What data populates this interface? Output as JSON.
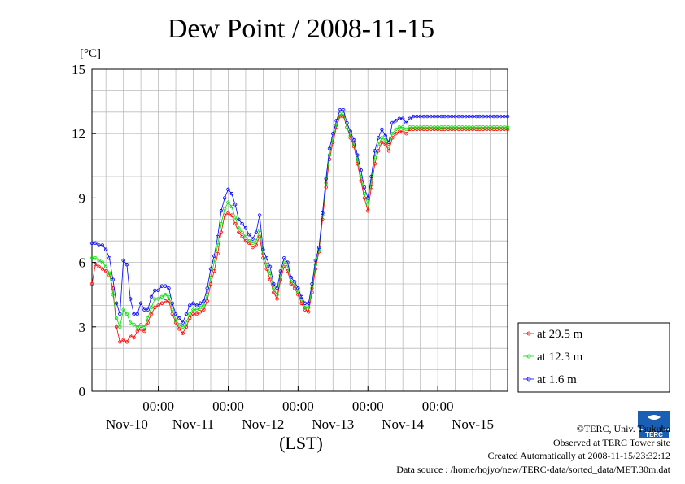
{
  "chart_data": {
    "type": "line",
    "title": "Dew Point / 2008-11-15",
    "ylabel": "[°C]",
    "xlabel": "(LST)",
    "ylim": [
      0,
      15
    ],
    "yticks": [
      0,
      3,
      6,
      9,
      12,
      15
    ],
    "ytick_labels": [
      "0",
      "3",
      "6",
      "9",
      "12",
      "15"
    ],
    "xlim": [
      -0.95,
      5.0
    ],
    "xticks_time": [
      0,
      1,
      2,
      3,
      4
    ],
    "xtick_time_label": "00:00",
    "x_day_labels": [
      {
        "x": -0.45,
        "label": "Nov-10"
      },
      {
        "x": 0.5,
        "label": "Nov-11"
      },
      {
        "x": 1.5,
        "label": "Nov-12"
      },
      {
        "x": 2.5,
        "label": "Nov-13"
      },
      {
        "x": 3.5,
        "label": "Nov-14"
      },
      {
        "x": 4.5,
        "label": "Nov-15"
      }
    ],
    "grid": true,
    "legend_position": "right",
    "x_unit": "days relative to Nov-11 00:00 (LST)",
    "series": [
      {
        "name": "at 29.5 m",
        "color": "#ff0000",
        "x": [
          -0.95,
          -0.9,
          -0.85,
          -0.8,
          -0.75,
          -0.7,
          -0.65,
          -0.6,
          -0.55,
          -0.5,
          -0.45,
          -0.4,
          -0.35,
          -0.3,
          -0.25,
          -0.2,
          -0.15,
          -0.1,
          -0.05,
          0,
          0.05,
          0.1,
          0.15,
          0.2,
          0.25,
          0.3,
          0.35,
          0.4,
          0.45,
          0.5,
          0.55,
          0.6,
          0.65,
          0.7,
          0.75,
          0.8,
          0.85,
          0.9,
          0.95,
          1,
          1.05,
          1.1,
          1.15,
          1.2,
          1.25,
          1.3,
          1.35,
          1.4,
          1.45,
          1.5,
          1.55,
          1.6,
          1.65,
          1.7,
          1.75,
          1.8,
          1.85,
          1.9,
          1.95,
          2,
          2.05,
          2.1,
          2.15,
          2.2,
          2.25,
          2.3,
          2.35,
          2.4,
          2.45,
          2.5,
          2.55,
          2.6,
          2.65,
          2.7,
          2.75,
          2.8,
          2.85,
          2.9,
          2.95,
          3,
          3.05,
          3.1,
          3.15,
          3.2,
          3.25,
          3.3,
          3.35,
          3.4,
          3.45,
          3.5,
          3.55,
          3.6,
          3.65,
          3.7,
          3.75,
          3.8,
          3.85,
          3.9,
          3.95,
          4,
          4.05,
          4.1,
          4.15,
          4.2,
          4.25,
          4.3,
          4.35,
          4.4,
          4.45,
          4.5,
          4.55,
          4.6,
          4.65,
          4.7,
          4.75,
          4.8,
          4.85,
          4.9,
          4.95,
          5.0
        ],
        "y": [
          5.0,
          5.9,
          5.8,
          5.7,
          5.6,
          5.4,
          4.8,
          3.0,
          2.3,
          2.4,
          2.3,
          2.6,
          2.5,
          2.8,
          2.9,
          2.8,
          3.2,
          3.6,
          3.9,
          4.0,
          4.1,
          4.2,
          4.2,
          3.6,
          3.2,
          2.9,
          2.7,
          3.0,
          3.4,
          3.6,
          3.6,
          3.7,
          3.8,
          4.2,
          5.0,
          5.6,
          6.4,
          7.4,
          8.2,
          8.3,
          8.2,
          7.8,
          7.4,
          7.2,
          7.0,
          6.9,
          6.7,
          6.8,
          7.2,
          6.2,
          5.7,
          5.2,
          4.6,
          4.3,
          5.2,
          5.8,
          5.6,
          5.0,
          4.8,
          4.5,
          4.1,
          3.8,
          3.7,
          4.6,
          5.7,
          6.5,
          8.0,
          9.5,
          10.8,
          11.6,
          12.3,
          12.8,
          12.8,
          12.3,
          11.8,
          11.4,
          10.6,
          9.8,
          9.0,
          8.4,
          9.5,
          10.6,
          11.2,
          11.6,
          11.5,
          11.2,
          11.8,
          12.0,
          12.1,
          12.1,
          12.0,
          12.2,
          12.2,
          12.2,
          12.2,
          12.2,
          12.2,
          12.2,
          12.2,
          12.2,
          12.2,
          12.2,
          12.2,
          12.2,
          12.2,
          12.2,
          12.2,
          12.2,
          12.2,
          12.2,
          12.2,
          12.2,
          12.2,
          12.2,
          12.2,
          12.2,
          12.2,
          12.2,
          12.2,
          12.2
        ]
      },
      {
        "name": "at 12.3 m",
        "color": "#00dd00",
        "x": [
          -0.95,
          -0.9,
          -0.85,
          -0.8,
          -0.75,
          -0.7,
          -0.65,
          -0.6,
          -0.55,
          -0.5,
          -0.45,
          -0.4,
          -0.35,
          -0.3,
          -0.25,
          -0.2,
          -0.15,
          -0.1,
          -0.05,
          0,
          0.05,
          0.1,
          0.15,
          0.2,
          0.25,
          0.3,
          0.35,
          0.4,
          0.45,
          0.5,
          0.55,
          0.6,
          0.65,
          0.7,
          0.75,
          0.8,
          0.85,
          0.9,
          0.95,
          1,
          1.05,
          1.1,
          1.15,
          1.2,
          1.25,
          1.3,
          1.35,
          1.4,
          1.45,
          1.5,
          1.55,
          1.6,
          1.65,
          1.7,
          1.75,
          1.8,
          1.85,
          1.9,
          1.95,
          2,
          2.05,
          2.1,
          2.15,
          2.2,
          2.25,
          2.3,
          2.35,
          2.4,
          2.45,
          2.5,
          2.55,
          2.6,
          2.65,
          2.7,
          2.75,
          2.8,
          2.85,
          2.9,
          2.95,
          3,
          3.05,
          3.1,
          3.15,
          3.2,
          3.25,
          3.3,
          3.35,
          3.4,
          3.45,
          3.5,
          3.55,
          3.6,
          3.65,
          3.7,
          3.75,
          3.8,
          3.85,
          3.9,
          3.95,
          4,
          4.05,
          4.1,
          4.15,
          4.2,
          4.25,
          4.3,
          4.35,
          4.4,
          4.45,
          4.5,
          4.55,
          4.6,
          4.65,
          4.7,
          4.75,
          4.8,
          4.85,
          4.9,
          4.95,
          5.0
        ],
        "y": [
          6.2,
          6.2,
          6.1,
          6.0,
          5.8,
          5.5,
          4.5,
          3.4,
          3.0,
          3.8,
          3.6,
          3.2,
          3.1,
          3.0,
          3.1,
          3.0,
          3.4,
          3.9,
          4.3,
          4.3,
          4.4,
          4.5,
          4.4,
          3.8,
          3.3,
          3.1,
          3.0,
          3.2,
          3.6,
          3.8,
          3.8,
          3.9,
          4.0,
          4.5,
          5.3,
          6.0,
          6.8,
          7.8,
          8.5,
          8.8,
          8.6,
          8.1,
          7.6,
          7.4,
          7.2,
          7.0,
          6.9,
          7.0,
          7.5,
          6.4,
          5.9,
          5.5,
          4.8,
          4.5,
          5.4,
          6.0,
          5.8,
          5.1,
          4.9,
          4.6,
          4.3,
          3.9,
          3.9,
          4.8,
          5.9,
          6.6,
          8.2,
          9.7,
          11.0,
          11.8,
          12.4,
          12.9,
          12.9,
          12.3,
          11.9,
          11.5,
          10.8,
          10.0,
          9.2,
          8.7,
          9.8,
          10.9,
          11.5,
          11.8,
          11.7,
          11.4,
          12.0,
          12.2,
          12.3,
          12.3,
          12.2,
          12.3,
          12.3,
          12.3,
          12.3,
          12.3,
          12.3,
          12.3,
          12.3,
          12.3,
          12.3,
          12.3,
          12.3,
          12.3,
          12.3,
          12.3,
          12.3,
          12.3,
          12.3,
          12.3,
          12.3,
          12.3,
          12.3,
          12.3,
          12.3,
          12.3,
          12.3,
          12.3,
          12.3,
          12.3
        ]
      },
      {
        "name": "at 1.6 m",
        "color": "#0000ff",
        "x": [
          -0.95,
          -0.9,
          -0.85,
          -0.8,
          -0.75,
          -0.7,
          -0.65,
          -0.6,
          -0.55,
          -0.5,
          -0.45,
          -0.4,
          -0.35,
          -0.3,
          -0.25,
          -0.2,
          -0.15,
          -0.1,
          -0.05,
          0,
          0.05,
          0.1,
          0.15,
          0.2,
          0.25,
          0.3,
          0.35,
          0.4,
          0.45,
          0.5,
          0.55,
          0.6,
          0.65,
          0.7,
          0.75,
          0.8,
          0.85,
          0.9,
          0.95,
          1,
          1.05,
          1.1,
          1.15,
          1.2,
          1.25,
          1.3,
          1.35,
          1.4,
          1.45,
          1.5,
          1.55,
          1.6,
          1.65,
          1.7,
          1.75,
          1.8,
          1.85,
          1.9,
          1.95,
          2,
          2.05,
          2.1,
          2.15,
          2.2,
          2.25,
          2.3,
          2.35,
          2.4,
          2.45,
          2.5,
          2.55,
          2.6,
          2.65,
          2.7,
          2.75,
          2.8,
          2.85,
          2.9,
          2.95,
          3,
          3.05,
          3.1,
          3.15,
          3.2,
          3.25,
          3.3,
          3.35,
          3.4,
          3.45,
          3.5,
          3.55,
          3.6,
          3.65,
          3.7,
          3.75,
          3.8,
          3.85,
          3.9,
          3.95,
          4,
          4.05,
          4.1,
          4.15,
          4.2,
          4.25,
          4.3,
          4.35,
          4.4,
          4.45,
          4.5,
          4.55,
          4.6,
          4.65,
          4.7,
          4.75,
          4.8,
          4.85,
          4.9,
          4.95,
          5.0
        ],
        "y": [
          6.9,
          6.9,
          6.8,
          6.8,
          6.6,
          6.2,
          5.2,
          4.1,
          3.6,
          6.1,
          5.9,
          4.3,
          3.6,
          3.6,
          4.1,
          3.8,
          3.8,
          4.4,
          4.7,
          4.7,
          4.9,
          4.9,
          4.8,
          4.1,
          3.6,
          3.4,
          3.2,
          3.6,
          4.0,
          4.1,
          4.0,
          4.1,
          4.2,
          4.8,
          5.7,
          6.3,
          7.2,
          8.4,
          9.0,
          9.4,
          9.2,
          8.7,
          8.0,
          7.8,
          7.6,
          7.3,
          7.1,
          7.4,
          8.2,
          6.6,
          6.2,
          5.8,
          5.0,
          4.8,
          5.6,
          6.2,
          6.0,
          5.3,
          5.1,
          4.8,
          4.4,
          4.1,
          4.1,
          5.0,
          6.1,
          6.7,
          8.3,
          9.9,
          11.3,
          12.0,
          12.6,
          13.1,
          13.1,
          12.5,
          12.1,
          11.7,
          11.0,
          10.3,
          9.5,
          9.0,
          10.0,
          11.2,
          11.8,
          12.2,
          11.9,
          11.6,
          12.5,
          12.6,
          12.7,
          12.7,
          12.5,
          12.7,
          12.8,
          12.8,
          12.8,
          12.8,
          12.8,
          12.8,
          12.8,
          12.8,
          12.8,
          12.8,
          12.8,
          12.8,
          12.8,
          12.8,
          12.8,
          12.8,
          12.8,
          12.8,
          12.8,
          12.8,
          12.8,
          12.8,
          12.8,
          12.8,
          12.8,
          12.8,
          12.8,
          12.8
        ]
      }
    ]
  },
  "credits": {
    "copyright": "©TERC, Univ. Tsukuba",
    "observed": "Observed at TERC Tower site",
    "created": "Created Automatically at 2008-11-15/23:32:12",
    "source": "Data source : /home/hojyo/new/TERC-data/sorted_data/MET.30m.dat"
  },
  "logo": {
    "text": "TERC",
    "color": "#1a5fb4"
  }
}
